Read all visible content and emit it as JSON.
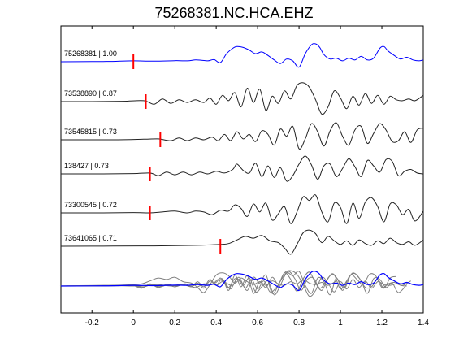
{
  "chart_data": {
    "type": "line",
    "title": "75268381.NC.HCA.EHZ",
    "xlabel": "",
    "ylabel": "",
    "xlim": [
      -0.35,
      1.4
    ],
    "xticks": [
      -0.2,
      0,
      0.2,
      0.4,
      0.6,
      0.8,
      1.0,
      1.2,
      1.4
    ],
    "xtick_labels": [
      "-0.2",
      "0",
      "0.2",
      "0.4",
      "0.6",
      "0.8",
      "1",
      "1.2",
      "1.4"
    ],
    "grid": false,
    "colors": {
      "reference": "#0000ff",
      "trace": "#222222",
      "overlay": "#808080",
      "pick": "#ff0000"
    },
    "traces": [
      {
        "label": "75268381 | 1.00",
        "pick": 0.0,
        "color": "#0000ff",
        "x": [
          -0.35,
          -0.2,
          -0.1,
          0,
          0.1,
          0.2,
          0.26,
          0.3,
          0.33,
          0.36,
          0.39,
          0.42,
          0.45,
          0.48,
          0.5,
          0.53,
          0.56,
          0.59,
          0.62,
          0.65,
          0.68,
          0.71,
          0.74,
          0.77,
          0.8,
          0.83,
          0.86,
          0.88,
          0.9,
          0.92,
          0.95,
          0.98,
          1.01,
          1.04,
          1.07,
          1.1,
          1.13,
          1.16,
          1.19,
          1.21,
          1.23,
          1.26,
          1.29,
          1.32,
          1.35,
          1.38,
          1.4
        ],
        "y": [
          0,
          0.01,
          0.02,
          0.05,
          0.03,
          0.06,
          0.05,
          0.1,
          0.08,
          0.05,
          0.12,
          -0.05,
          0.45,
          0.75,
          0.85,
          0.8,
          0.65,
          0.45,
          0.55,
          0.35,
          0.1,
          -0.1,
          0.15,
          0.05,
          -0.3,
          0.45,
          0.95,
          1.0,
          0.8,
          0.4,
          0.15,
          0.2,
          0.05,
          0.2,
          0.1,
          0.3,
          0.1,
          0.2,
          0.75,
          0.85,
          0.6,
          0.35,
          0.15,
          0.25,
          0.1,
          0.05,
          0.1
        ]
      },
      {
        "label": "73538890 | 0.87",
        "pick": 0.06,
        "color": "#222222",
        "x": [
          -0.35,
          -0.2,
          -0.05,
          0.05,
          0.1,
          0.14,
          0.18,
          0.22,
          0.26,
          0.3,
          0.34,
          0.37,
          0.4,
          0.43,
          0.46,
          0.49,
          0.52,
          0.55,
          0.58,
          0.61,
          0.64,
          0.67,
          0.7,
          0.73,
          0.76,
          0.79,
          0.82,
          0.85,
          0.88,
          0.91,
          0.94,
          0.97,
          1.0,
          1.03,
          1.06,
          1.09,
          1.12,
          1.15,
          1.18,
          1.21,
          1.24,
          1.27,
          1.3,
          1.33,
          1.36,
          1.4
        ],
        "y": [
          0,
          0,
          0.02,
          0.05,
          -0.15,
          0.15,
          -0.1,
          0.1,
          -0.05,
          0.1,
          -0.05,
          0.2,
          -0.15,
          0.35,
          0.05,
          0.5,
          -0.3,
          0.75,
          -0.05,
          0.7,
          -0.5,
          0.3,
          -0.1,
          0.6,
          0.15,
          0.9,
          1.05,
          0.8,
          0.1,
          -0.7,
          -0.3,
          0.6,
          0.2,
          -0.4,
          0.3,
          -0.2,
          0.45,
          -0.1,
          0.35,
          -0.15,
          0.3,
          0.1,
          0.05,
          0.15,
          0.05,
          0.35
        ]
      },
      {
        "label": "73545815 | 0.73",
        "pick": 0.13,
        "color": "#222222",
        "x": [
          -0.35,
          -0.1,
          0.05,
          0.12,
          0.18,
          0.22,
          0.26,
          0.3,
          0.34,
          0.38,
          0.41,
          0.44,
          0.47,
          0.5,
          0.53,
          0.56,
          0.59,
          0.62,
          0.65,
          0.68,
          0.71,
          0.74,
          0.77,
          0.8,
          0.83,
          0.86,
          0.89,
          0.92,
          0.95,
          0.98,
          1.01,
          1.04,
          1.07,
          1.1,
          1.13,
          1.16,
          1.19,
          1.22,
          1.25,
          1.28,
          1.31,
          1.34,
          1.37,
          1.4
        ],
        "y": [
          0,
          0,
          0.03,
          0.05,
          -0.05,
          0.1,
          -0.05,
          0.1,
          0.0,
          0.15,
          -0.05,
          0.3,
          -0.05,
          0.45,
          0.05,
          0.3,
          -0.1,
          0.5,
          0.3,
          -0.3,
          0.6,
          0.2,
          0.75,
          -0.5,
          0.05,
          0.9,
          0.45,
          -0.35,
          0.5,
          0.95,
          0.2,
          -0.3,
          0.55,
          0.75,
          -0.2,
          0.35,
          0.9,
          0.55,
          -0.1,
          -0.05,
          0.45,
          -0.15,
          0.55,
          0.65
        ]
      },
      {
        "label": "138427 | 0.73",
        "pick": 0.08,
        "color": "#222222",
        "x": [
          -0.35,
          -0.15,
          0.0,
          0.08,
          0.12,
          0.16,
          0.2,
          0.24,
          0.28,
          0.32,
          0.36,
          0.4,
          0.44,
          0.48,
          0.5,
          0.53,
          0.56,
          0.59,
          0.62,
          0.65,
          0.68,
          0.71,
          0.74,
          0.77,
          0.8,
          0.83,
          0.86,
          0.89,
          0.92,
          0.95,
          0.98,
          1.01,
          1.04,
          1.07,
          1.1,
          1.13,
          1.16,
          1.19,
          1.22,
          1.25,
          1.28,
          1.31,
          1.34,
          1.37,
          1.4
        ],
        "y": [
          0,
          0,
          0.02,
          0.05,
          -0.1,
          0.1,
          -0.05,
          0.1,
          -0.05,
          0.1,
          0.0,
          0.15,
          0.05,
          0.25,
          0.55,
          0.2,
          0.05,
          0.6,
          -0.15,
          0.45,
          -0.2,
          0.35,
          -0.4,
          -0.1,
          0.55,
          1.0,
          0.5,
          -0.3,
          0.45,
          0.55,
          -0.15,
          0.3,
          0.85,
          0.4,
          -0.15,
          0.75,
          0.45,
          0.1,
          0.8,
          0.7,
          -0.1,
          0.15,
          0.25,
          0.05,
          0.0
        ]
      },
      {
        "label": "73300545 | 0.72",
        "pick": 0.08,
        "color": "#222222",
        "x": [
          -0.35,
          -0.15,
          0.0,
          0.08,
          0.14,
          0.2,
          0.26,
          0.3,
          0.34,
          0.38,
          0.42,
          0.46,
          0.49,
          0.52,
          0.55,
          0.58,
          0.61,
          0.64,
          0.67,
          0.7,
          0.73,
          0.76,
          0.79,
          0.82,
          0.85,
          0.88,
          0.91,
          0.94,
          0.97,
          1.0,
          1.03,
          1.06,
          1.09,
          1.12,
          1.15,
          1.18,
          1.21,
          1.24,
          1.27,
          1.3,
          1.33,
          1.36,
          1.4
        ],
        "y": [
          0,
          0,
          0.02,
          0.0,
          0.05,
          0.1,
          0.0,
          0.1,
          0.05,
          -0.1,
          0.15,
          0.1,
          0.45,
          0.25,
          -0.2,
          0.5,
          0.05,
          0.55,
          -0.4,
          -0.05,
          0.35,
          -0.6,
          0.05,
          0.9,
          0.7,
          1.0,
          0.05,
          -0.5,
          0.55,
          0.3,
          -0.6,
          0.55,
          -0.3,
          0.6,
          0.85,
          0.35,
          -0.5,
          0.5,
          0.45,
          -0.1,
          0.2,
          -0.45,
          0.1
        ]
      },
      {
        "label": "73641065 | 0.71",
        "pick": 0.42,
        "color": "#222222",
        "x": [
          -0.35,
          -0.1,
          0.1,
          0.3,
          0.42,
          0.46,
          0.5,
          0.54,
          0.58,
          0.62,
          0.66,
          0.7,
          0.73,
          0.76,
          0.79,
          0.82,
          0.85,
          0.88,
          0.91,
          0.94,
          0.97,
          1.0,
          1.03,
          1.06,
          1.09,
          1.12,
          1.15,
          1.18,
          1.21,
          1.24,
          1.27,
          1.3,
          1.33,
          1.36,
          1.4
        ],
        "y": [
          0,
          0.01,
          0.02,
          0.05,
          0.1,
          0.15,
          0.35,
          0.55,
          0.45,
          0.6,
          0.3,
          0.2,
          -0.1,
          -0.45,
          0.1,
          0.75,
          0.9,
          0.7,
          0.2,
          0.55,
          0.3,
          0.1,
          0.3,
          0.05,
          0.35,
          0.15,
          0.05,
          0.3,
          0.15,
          0.45,
          0.2,
          0.1,
          0.25,
          0.05,
          0.35
        ]
      }
    ]
  }
}
